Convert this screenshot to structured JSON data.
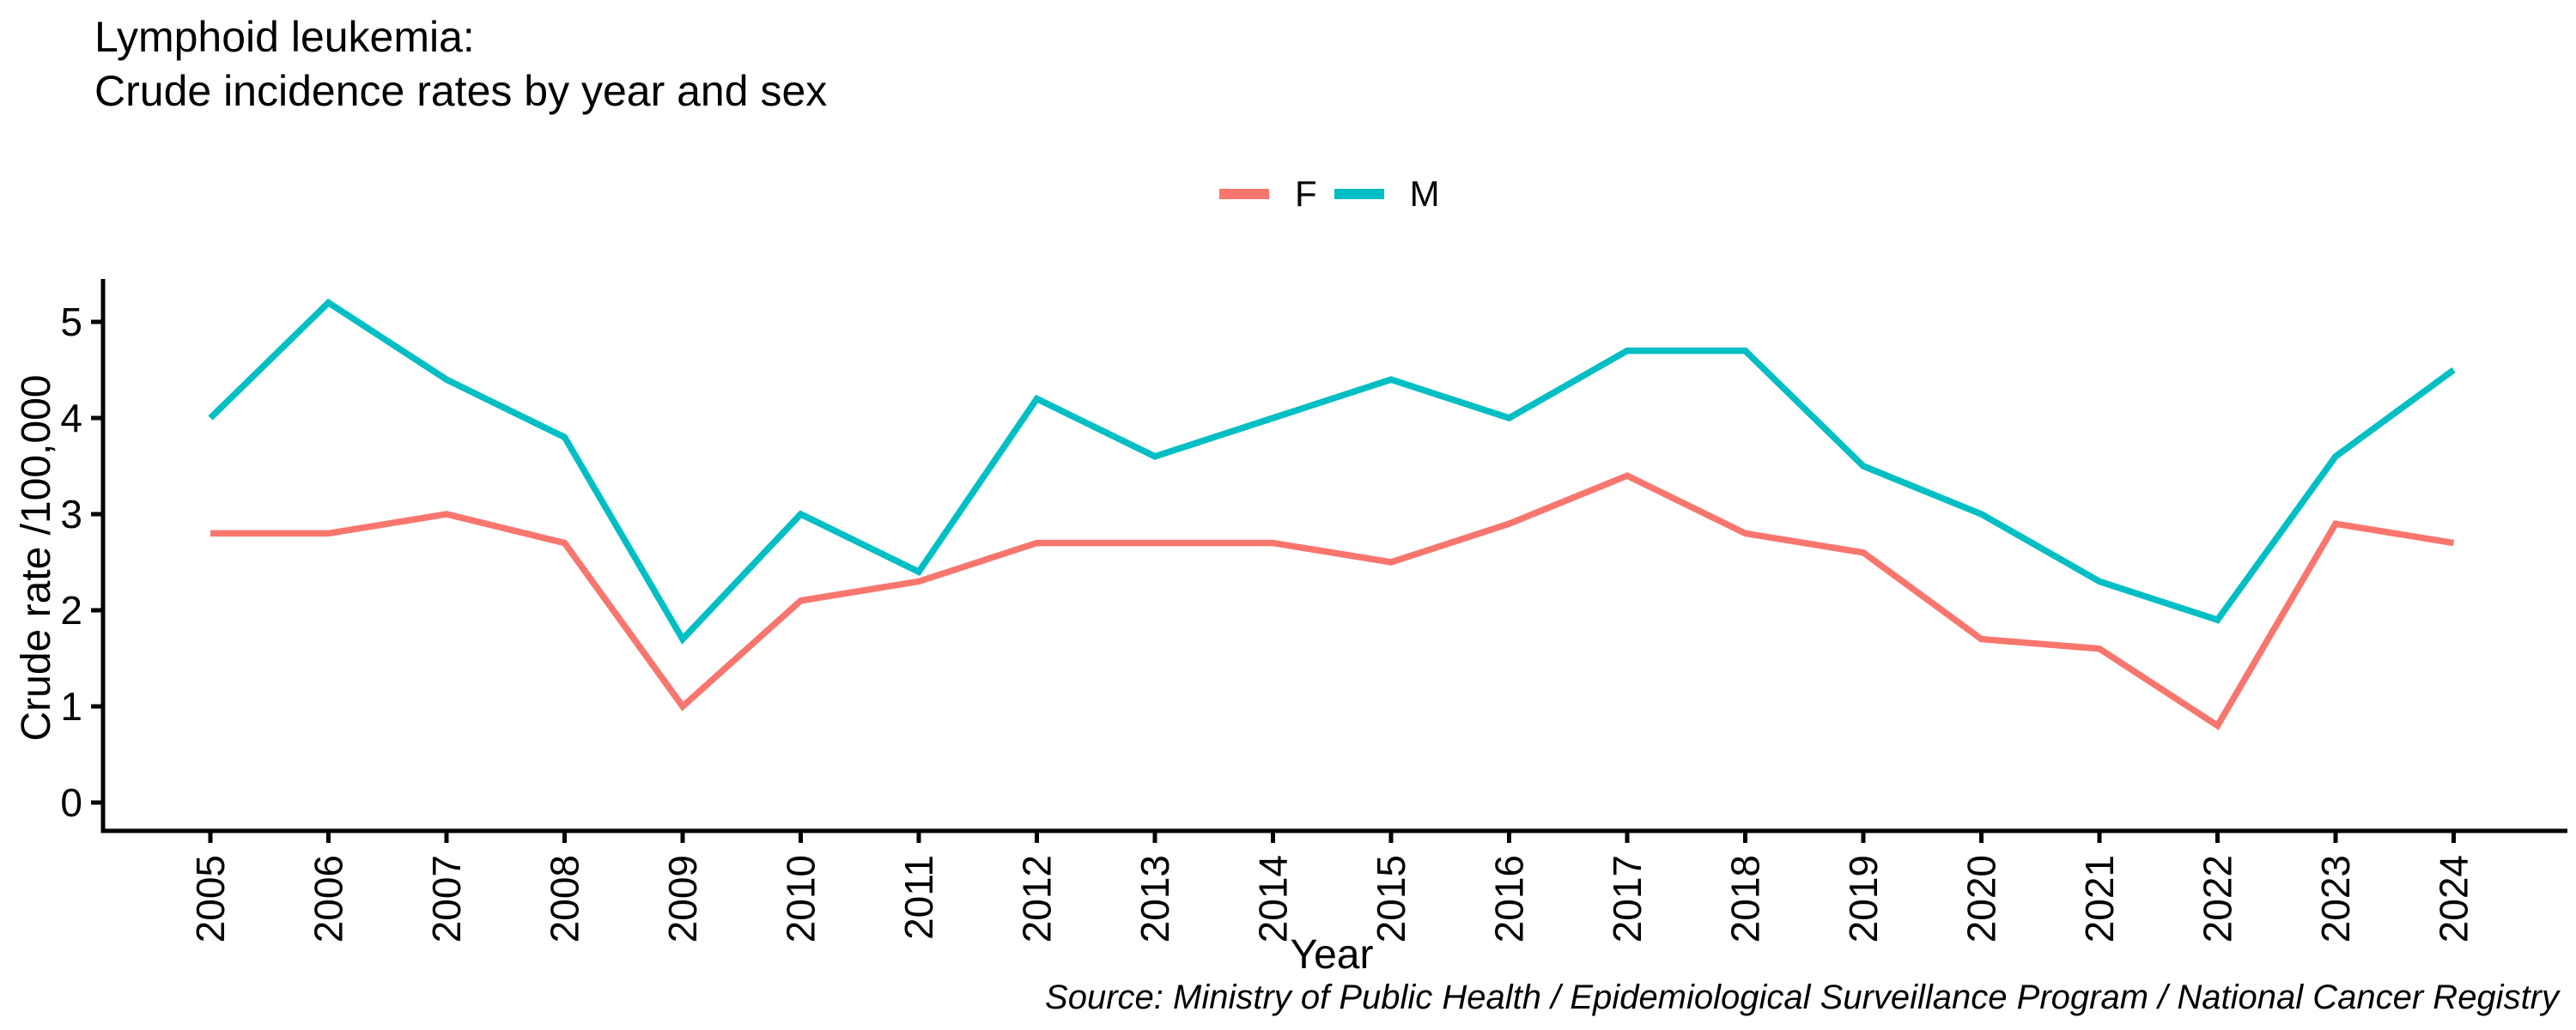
{
  "title": {
    "line1": "Lymphoid leukemia:",
    "line2": "Crude incidence rates by year and sex"
  },
  "legend": {
    "items": [
      {
        "label": "F",
        "color": "#F8766D"
      },
      {
        "label": "M",
        "color": "#00BFC4"
      }
    ]
  },
  "axes": {
    "x_title": "Year",
    "y_title": "Crude rate /100,000",
    "y_ticks": [
      0,
      1,
      2,
      3,
      4,
      5
    ]
  },
  "source_credit": "Source: Ministry of Public Health / Epidemiological Surveillance Program / National Cancer Registry",
  "chart_data": {
    "type": "line",
    "title": "Lymphoid leukemia: Crude incidence rates by year and sex",
    "xlabel": "Year",
    "ylabel": "Crude rate /100,000",
    "x": [
      2005,
      2006,
      2007,
      2008,
      2009,
      2010,
      2011,
      2012,
      2013,
      2014,
      2015,
      2016,
      2017,
      2018,
      2019,
      2020,
      2021,
      2022,
      2023,
      2024
    ],
    "series": [
      {
        "name": "F",
        "color": "#F8766D",
        "values": [
          2.8,
          2.8,
          3.0,
          2.7,
          1.0,
          2.1,
          2.3,
          2.7,
          2.7,
          2.7,
          2.5,
          2.9,
          3.4,
          2.8,
          2.6,
          1.7,
          1.6,
          0.8,
          2.9,
          2.7
        ]
      },
      {
        "name": "M",
        "color": "#00BFC4",
        "values": [
          4.0,
          5.2,
          4.4,
          3.8,
          1.7,
          3.0,
          2.4,
          4.2,
          3.6,
          4.0,
          4.4,
          4.0,
          4.7,
          4.7,
          3.5,
          3.0,
          2.3,
          1.9,
          3.6,
          4.5
        ]
      }
    ],
    "ylim": [
      0,
      5.2
    ],
    "y_ticks": [
      0,
      1,
      2,
      3,
      4,
      5
    ],
    "grid": false,
    "legend_position": "top-center",
    "axis_color": "#000000"
  }
}
